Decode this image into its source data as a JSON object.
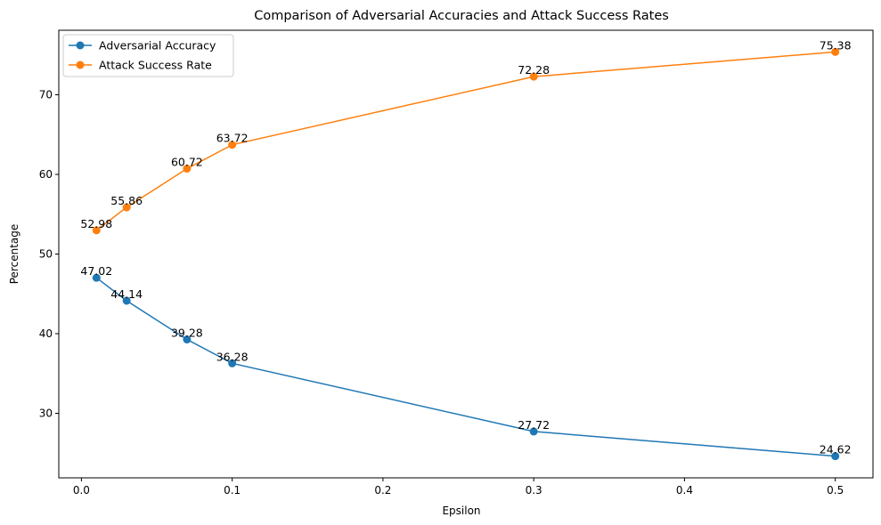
{
  "chart_data": {
    "type": "line",
    "title": "Comparison of Adversarial Accuracies and Attack Success Rates",
    "xlabel": "Epsilon",
    "ylabel": "Percentage",
    "x": [
      0.01,
      0.03,
      0.07,
      0.1,
      0.3,
      0.5
    ],
    "xlim": [
      -0.015,
      0.525
    ],
    "ylim": [
      21.9,
      78.1
    ],
    "xticks": [
      0.0,
      0.1,
      0.2,
      0.3,
      0.4,
      0.5
    ],
    "xtick_labels": [
      "0.0",
      "0.1",
      "0.2",
      "0.3",
      "0.4",
      "0.5"
    ],
    "yticks": [
      30,
      40,
      50,
      60,
      70
    ],
    "ytick_labels": [
      "30",
      "40",
      "50",
      "60",
      "70"
    ],
    "grid": false,
    "legend_position": "top-left",
    "series": [
      {
        "name": "Adversarial Accuracy",
        "color": "#1f77b4",
        "values": [
          47.02,
          44.14,
          39.28,
          36.28,
          27.72,
          24.62
        ],
        "labels": [
          "47.02",
          "44.14",
          "39.28",
          "36.28",
          "27.72",
          "24.62"
        ]
      },
      {
        "name": "Attack Success Rate",
        "color": "#ff7f0e",
        "values": [
          52.98,
          55.86,
          60.72,
          63.72,
          72.28,
          75.38
        ],
        "labels": [
          "52.98",
          "55.86",
          "60.72",
          "63.72",
          "72.28",
          "75.38"
        ]
      }
    ]
  }
}
